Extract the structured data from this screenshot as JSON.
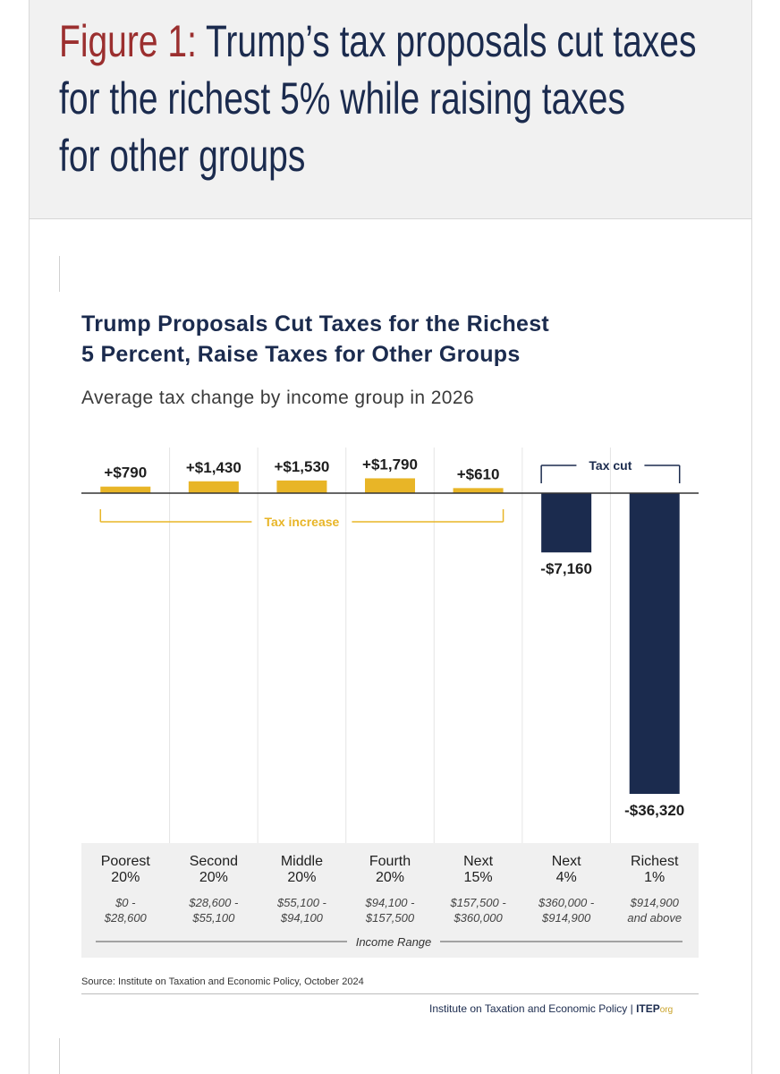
{
  "figure": {
    "label": "Figure 1:",
    "title_line1": " Trump’s tax proposals cut taxes",
    "title_line2": "for the richest 5% while raising taxes",
    "title_line3": "for other groups"
  },
  "chart_data": {
    "type": "bar",
    "title_line1": "Trump Proposals Cut Taxes for the Richest",
    "title_line2": "5 Percent, Raise Taxes for Other Groups",
    "subtitle": "Average tax change by income group in 2026",
    "categories": [
      {
        "name_line1": "Poorest",
        "name_line2": "20%",
        "range_line1": "$0 -",
        "range_line2": "$28,600"
      },
      {
        "name_line1": "Second",
        "name_line2": "20%",
        "range_line1": "$28,600 -",
        "range_line2": "$55,100"
      },
      {
        "name_line1": "Middle",
        "name_line2": "20%",
        "range_line1": "$55,100 -",
        "range_line2": "$94,100"
      },
      {
        "name_line1": "Fourth",
        "name_line2": "20%",
        "range_line1": "$94,100 -",
        "range_line2": "$157,500"
      },
      {
        "name_line1": "Next",
        "name_line2": "15%",
        "range_line1": "$157,500 -",
        "range_line2": "$360,000"
      },
      {
        "name_line1": "Next",
        "name_line2": "4%",
        "range_line1": "$360,000 -",
        "range_line2": "$914,900"
      },
      {
        "name_line1": "Richest",
        "name_line2": "1%",
        "range_line1": "$914,900",
        "range_line2": "and above"
      }
    ],
    "values": [
      790,
      1430,
      1530,
      1790,
      610,
      -7160,
      -36320
    ],
    "value_labels": [
      "+$790",
      "+$1,430",
      "+$1,530",
      "+$1,790",
      "+$610",
      "-$7,160",
      "-$36,320"
    ],
    "increase_bracket_label": "Tax increase",
    "cut_bracket_label": "Tax cut",
    "x_axis_label": "Income Range",
    "colors": {
      "increase": "#e8b527",
      "cut": "#1b2b4e",
      "bracket_increase": "#e8b527",
      "bracket_cut": "#1b2b4e"
    }
  },
  "source": "Source: Institute on Taxation and Economic Policy, October 2024",
  "footer": {
    "credit": "Institute on Taxation and Economic Policy",
    "separator": "|",
    "brand": "ITEP",
    "brand_suffix": "org"
  }
}
